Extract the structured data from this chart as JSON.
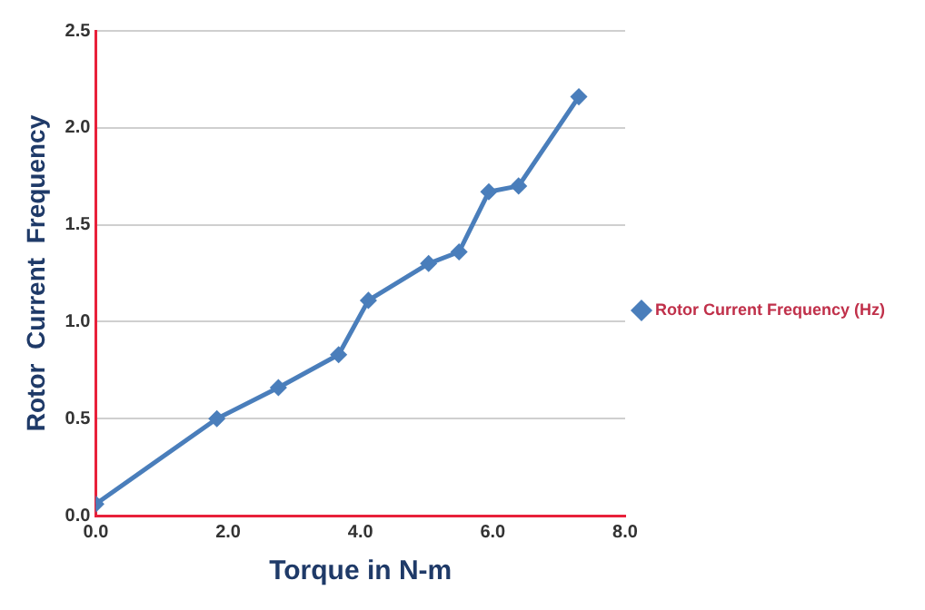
{
  "chart_data": {
    "type": "line",
    "xlabel": "Torque in N-m",
    "ylabel": "Rotor  Current  Frequency",
    "x": [
      0,
      1.83,
      2.76,
      3.67,
      4.12,
      5.03,
      5.49,
      5.94,
      6.39,
      7.3
    ],
    "series": [
      {
        "name": "Rotor Current Frequency (Hz)",
        "color": "#4a7ebb",
        "values": [
          0.06,
          0.5,
          0.66,
          0.83,
          1.11,
          1.3,
          1.36,
          1.67,
          1.7,
          2.16
        ]
      }
    ],
    "xlim": [
      0,
      8
    ],
    "xticks": [
      {
        "value": 0,
        "label": "0.0"
      },
      {
        "value": 2,
        "label": "2.0"
      },
      {
        "value": 4,
        "label": "4.0"
      },
      {
        "value": 6,
        "label": "6.0"
      },
      {
        "value": 8,
        "label": "8.0"
      }
    ],
    "ylim": [
      0,
      2.5
    ],
    "yticks": [
      {
        "value": 0,
        "label": "0.0"
      },
      {
        "value": 0.5,
        "label": "0.5"
      },
      {
        "value": 1,
        "label": "1.0"
      },
      {
        "value": 1.5,
        "label": "1.5"
      },
      {
        "value": 2,
        "label": "2.0"
      },
      {
        "value": 2.5,
        "label": "2.5"
      }
    ],
    "grid": "y",
    "legend": "right",
    "marker": "diamond",
    "line_style": "solid"
  }
}
